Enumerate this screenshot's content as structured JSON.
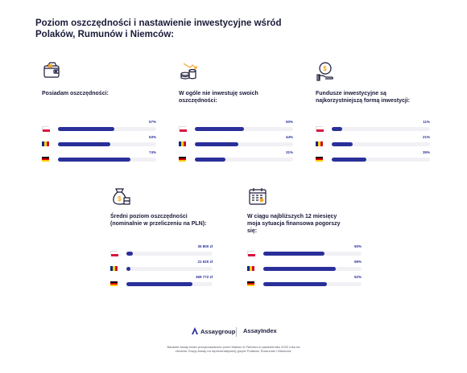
{
  "title": "Poziom oszczędności i nastawienie inwestycyjne wśród Polaków, Rumunów i Niemców:",
  "colors": {
    "bar": "#2a2f9a",
    "track": "#f1f1f5",
    "text": "#1a1a3a"
  },
  "flags": [
    "poland-flag",
    "romania-flag",
    "germany-flag"
  ],
  "chart_data": [
    {
      "type": "bar",
      "title": "Posiadam oszczędności:",
      "icon": "wallet-icon",
      "categories": [
        "Polska",
        "Rumunia",
        "Niemcy"
      ],
      "values": [
        57,
        53,
        74
      ],
      "value_labels": [
        "57%",
        "53%",
        "74%"
      ],
      "xlim": [
        0,
        100
      ]
    },
    {
      "type": "bar",
      "title": "W ogóle nie inwestuję swoich oszczędności:",
      "icon": "coins-arrow-icon",
      "categories": [
        "Polska",
        "Rumunia",
        "Niemcy"
      ],
      "values": [
        50,
        44,
        31
      ],
      "value_labels": [
        "50%",
        "44%",
        "31%"
      ],
      "xlim": [
        0,
        100
      ]
    },
    {
      "type": "bar",
      "title": "Fundusze inwestycyjne są najkorzystniejszą formą inwestycji:",
      "icon": "investment-fund-icon",
      "categories": [
        "Polska",
        "Rumunia",
        "Niemcy"
      ],
      "values": [
        11,
        21,
        35
      ],
      "value_labels": [
        "11%",
        "21%",
        "35%"
      ],
      "xlim": [
        0,
        100
      ]
    },
    {
      "type": "bar",
      "title": "Średni poziom oszczędności (nominalnie w przeliczeniu na PLN):",
      "icon": "money-bag-icon",
      "categories": [
        "Polska",
        "Rumunia",
        "Niemcy"
      ],
      "values": [
        35800,
        21620,
        369772
      ],
      "value_labels": [
        "35 800 zł",
        "21 620 zł",
        "369 772 zł"
      ],
      "xlim": [
        0,
        480000
      ]
    },
    {
      "type": "bar",
      "title": "W ciągu najbliższych 12 miesięcy moja sytuacja finansowa pogorszy się:",
      "icon": "calendar-icon",
      "categories": [
        "Polska",
        "Rumunia",
        "Niemcy"
      ],
      "values": [
        50,
        59,
        52
      ],
      "value_labels": [
        "50%",
        "59%",
        "52%"
      ],
      "xlim": [
        0,
        80
      ]
    }
  ],
  "footer": {
    "logo_group": "Assaygroup",
    "logo_index": "AssayIndex",
    "note": "Badanie Assay Index przeprowadzone przez Maison & Partners w październiku 2022 roku na zlecenie Grupy Assay na reprezentatywnej grupie Polaków, Rumunów i Niemców."
  }
}
